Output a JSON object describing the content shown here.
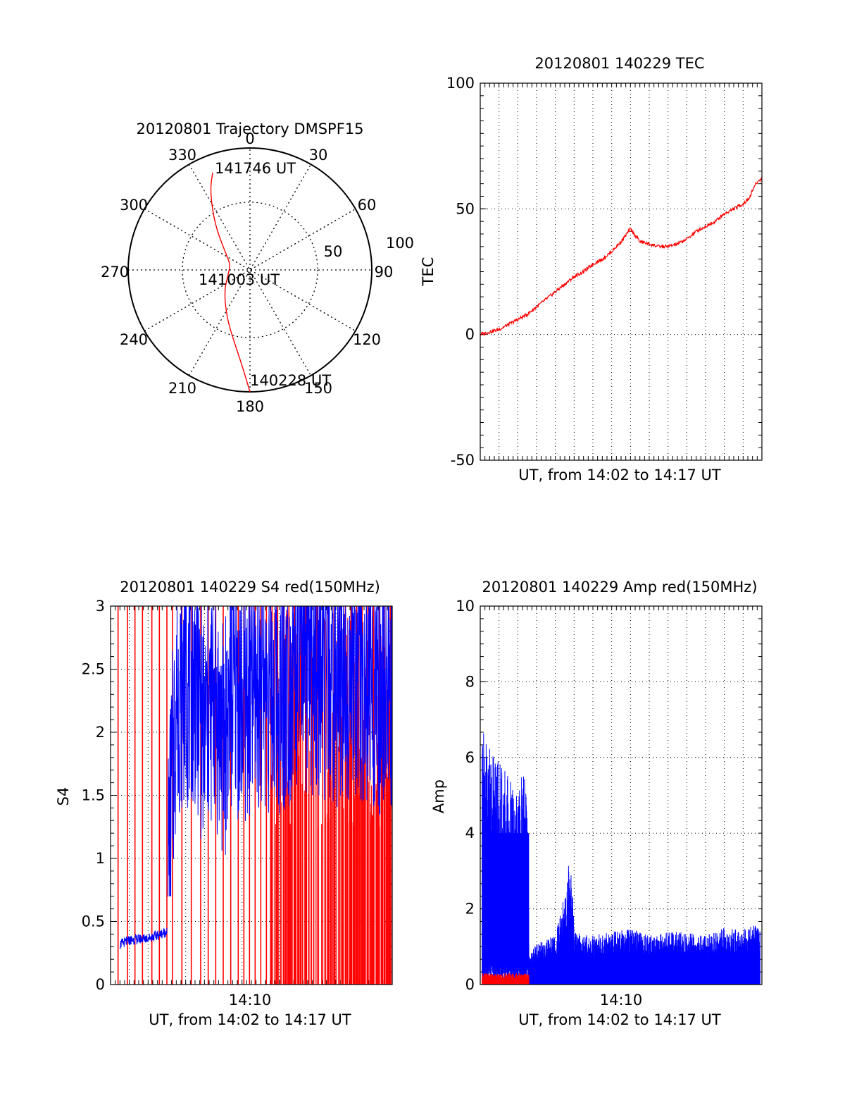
{
  "colors": {
    "primary": "#ff0000",
    "secondary": "#0000ff",
    "axis": "#000000",
    "grid": "#000000"
  },
  "chart_data": [
    {
      "type": "polar",
      "title": "20120801 Trajectory DMSPF15",
      "azimuth_labels": [
        "0",
        "30",
        "60",
        "90",
        "120",
        "150",
        "180",
        "210",
        "240",
        "270",
        "300",
        "330"
      ],
      "radius_labels": [
        "50",
        "100"
      ],
      "grid": true,
      "series": [
        {
          "points": [
            {
              "az": 180,
              "el": 0
            },
            {
              "az": 185,
              "el": 20
            },
            {
              "az": 192,
              "el": 35
            },
            {
              "az": 205,
              "el": 50
            },
            {
              "az": 230,
              "el": 65
            },
            {
              "az": 262,
              "el": 74
            },
            {
              "az": 285,
              "el": 75
            },
            {
              "az": 305,
              "el": 68
            },
            {
              "az": 322,
              "el": 48
            },
            {
              "az": 333,
              "el": 25
            },
            {
              "az": 339,
              "el": 13
            }
          ]
        }
      ],
      "annotations": [
        {
          "text": "141746 UT",
          "az": 339,
          "el": 13
        },
        {
          "text": "141003 UT",
          "az": 340,
          "el": 88
        },
        {
          "text": "140228 UT",
          "az": 178,
          "el": 3
        }
      ]
    },
    {
      "type": "line",
      "title": "20120801 140229 TEC",
      "xlabel": "UT, from 14:02 to 14:17 UT",
      "ylabel": "TEC",
      "xlim": [
        0,
        15
      ],
      "ylim": [
        -50,
        100
      ],
      "yticks": [
        "100",
        "50",
        "0",
        "-50"
      ],
      "grid": true,
      "series": [
        {
          "x": [
            0,
            0.5,
            1,
            1.5,
            2,
            2.5,
            3,
            3.5,
            4,
            4.5,
            5,
            5.5,
            6,
            6.5,
            7,
            7.5,
            7.8,
            8,
            8.5,
            9,
            9.5,
            10,
            10.5,
            11,
            11.5,
            12,
            12.5,
            13,
            13.5,
            14,
            14.3,
            14.6,
            14.8,
            15
          ],
          "y": [
            0,
            1,
            2,
            4,
            6,
            8,
            11,
            14,
            17,
            20,
            23,
            25,
            28,
            30,
            33,
            37,
            40,
            42,
            37,
            36,
            35,
            35,
            36,
            38,
            41,
            43,
            45,
            48,
            50,
            52,
            54,
            59,
            61,
            62
          ]
        }
      ]
    },
    {
      "type": "line",
      "title": "20120801 140229 S4 red(150MHz)",
      "xlabel": "UT, from 14:02 to 14:17 UT",
      "ylabel": "S4",
      "xlim": [
        0,
        15
      ],
      "ylim": [
        0,
        3
      ],
      "xticks": [
        "14:10"
      ],
      "yticks": [
        "3",
        "2.5",
        "2",
        "1.5",
        "1",
        "0.5",
        "0"
      ],
      "grid": true,
      "series": [
        {
          "color": "#0000ff",
          "x": [
            0.5,
            1.0,
            1.5,
            2.0,
            2.5,
            3.0,
            3.05,
            3.5,
            4.0,
            4.5,
            5.0,
            5.5,
            6.0,
            6.5,
            7.0,
            8.0,
            9.0,
            10.0,
            11.0,
            12.0,
            13.0,
            14.0,
            15.0
          ],
          "y": [
            0.32,
            0.35,
            0.36,
            0.37,
            0.39,
            0.42,
            0.9,
            2.3,
            2.4,
            2.4,
            2.0,
            2.3,
            1.9,
            2.4,
            2.2,
            2.4,
            2.3,
            2.5,
            2.5,
            2.4,
            2.5,
            2.3,
            2.4
          ]
        },
        {
          "color": "#ff0000",
          "x": [
            0.4,
            0.9,
            1.3,
            1.7,
            2.2,
            2.6,
            3.0,
            3.3,
            3.8,
            4.3,
            4.8,
            5.2,
            5.6,
            6.0,
            6.4,
            6.8,
            7.1,
            7.4,
            7.7,
            8.0,
            8.3,
            8.6,
            8.9,
            9.2,
            9.5,
            9.8,
            10.1,
            10.4,
            10.7,
            11.0,
            11.3,
            11.6,
            11.9,
            12.2,
            12.5,
            12.8,
            13.1,
            13.4,
            13.7,
            14.0,
            14.3,
            14.6,
            14.9
          ],
          "y": [
            3,
            3,
            3,
            3,
            3,
            3,
            3,
            3,
            3,
            3,
            3,
            3,
            3,
            3,
            3,
            3,
            3,
            3,
            3,
            3,
            3,
            3,
            3,
            3,
            3,
            3,
            3,
            3,
            3,
            3,
            3,
            3,
            3,
            3,
            3,
            3,
            3,
            3,
            3,
            3,
            3,
            3,
            3
          ]
        }
      ]
    },
    {
      "type": "line",
      "title": "20120801 140229 Amp red(150MHz)",
      "xlabel": "UT, from 14:02 to 14:17 UT",
      "ylabel": "Amp",
      "xlim": [
        0,
        15
      ],
      "ylim": [
        0,
        10
      ],
      "xticks": [
        "14:10"
      ],
      "yticks": [
        "10",
        "8",
        "6",
        "4",
        "2",
        "0"
      ],
      "grid": true,
      "series": [
        {
          "color": "#0000ff",
          "x": [
            0.1,
            0.5,
            1.0,
            1.5,
            2.0,
            2.5,
            2.6,
            3.0,
            4.0,
            4.6,
            4.7,
            4.9,
            5.0,
            6.0,
            7.0,
            8.0,
            9.0,
            10.0,
            11.0,
            12.0,
            13.0,
            14.0,
            14.9
          ],
          "y": [
            7.0,
            6.5,
            6.0,
            5.5,
            5.4,
            5.6,
            0.8,
            1.1,
            1.3,
            2.6,
            3.4,
            2.8,
            1.4,
            1.3,
            1.4,
            1.5,
            1.3,
            1.4,
            1.4,
            1.3,
            1.5,
            1.5,
            1.6
          ]
        },
        {
          "color": "#ff0000",
          "x": [
            0.1,
            0.5,
            1.0,
            1.5,
            2.0,
            2.5,
            2.6
          ],
          "y": [
            0.3,
            0.25,
            0.3,
            0.25,
            0.3,
            0.25,
            0.3
          ]
        }
      ]
    }
  ]
}
